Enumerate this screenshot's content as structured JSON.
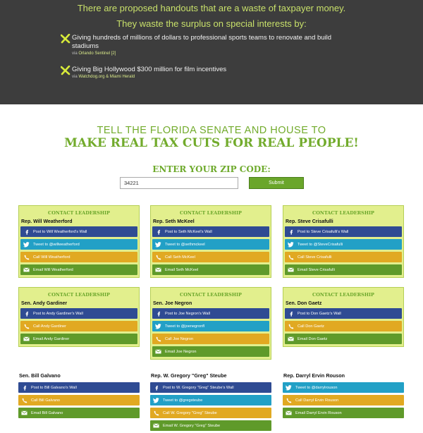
{
  "top": {
    "intro": "There are proposed handouts that are a waste of taxpayer money.",
    "waste_heading": "They waste the surplus on special interests by:",
    "items": [
      {
        "text": "Giving hundreds of millions of dollars to professional sports teams to renovate and build stadiums",
        "via_prefix": "via",
        "via_links": "Orlando Sentinel [2]"
      },
      {
        "text": "Giving Big Hollywood $300 million for film incentives",
        "via_prefix": "via",
        "via_links": "Watchdog.org & Miami Herald"
      }
    ]
  },
  "headline": {
    "line1": "TELL THE FLORIDA SENATE AND HOUSE TO",
    "line2": "MAKE REAL TAX CUTS FOR REAL PEOPLE!"
  },
  "zip": {
    "label": "ENTER YOUR ZIP CODE:",
    "value": "34221",
    "submit": "Submit"
  },
  "contact_title": "CONTACT LEADERSHIP",
  "cards": [
    {
      "name": "Rep. Will Weatherford",
      "fb": "Post to Will Weatherford's Wall",
      "tw": "Tweet to @willweatherford",
      "call": "Call Will Weatherford",
      "email": "Email Will Weatherford"
    },
    {
      "name": "Rep. Seth McKeel",
      "fb": "Post to Seth McKeel's Wall",
      "tw": "Tweet to @sethmckeel",
      "call": "Call Seth McKeel",
      "email": "Email Seth McKeel"
    },
    {
      "name": "Rep. Steve Crisafulli",
      "fb": "Post to Steve Crisafulli's Wall",
      "tw": "Tweet to @SteveCrisafulli",
      "call": "Call Steve Crisafulli",
      "email": "Email Steve Crisafulli"
    },
    {
      "name": "Sen. Andy Gardiner",
      "fb": "Post to Andy Gardiner's Wall",
      "call": "Call Andy Gardiner",
      "email": "Email Andy Gardiner"
    },
    {
      "name": "Sen. Joe Negron",
      "fb": "Post to Joe Negron's Wall",
      "tw": "Tweet to @joenegronfl",
      "call": "Call Joe Negron",
      "email": "Email Joe Negron"
    },
    {
      "name": "Sen. Don Gaetz",
      "fb": "Post to Don Gaetz's Wall",
      "call": "Call Don Gaetz",
      "email": "Email Don Gaetz"
    },
    {
      "name": "Sen. Bill Galvano",
      "fb": "Post to Bill Galvano's Wall",
      "call": "Call Bill Galvano",
      "email": "Email Bill Galvano"
    },
    {
      "name": "Rep. W. Gregory \"Greg\" Steube",
      "fb": "Post to W. Gregory \"Greg\" Steube's Wall",
      "tw": "Tweet to @gregsteube",
      "call": "Call W. Gregory \"Greg\" Steube",
      "email": "Email W. Gregory \"Greg\" Steube"
    },
    {
      "name": "Rep. Darryl Ervin Rouson",
      "tw": "Tweet to @darrylrouson",
      "call": "Call Darryl Ervin Rouson",
      "email": "Email Darryl Ervin Rouson"
    }
  ],
  "colors": {
    "facebook": "#2f4b93",
    "twitter": "#22a0c6",
    "call": "#e1a922",
    "email": "#5f9a2a",
    "accent_green": "#72ab2c",
    "card_bg": "#e2ef8d"
  },
  "icons": {
    "facebook": "facebook-icon",
    "twitter": "twitter-icon",
    "call": "phone-icon",
    "email": "envelope-icon",
    "bullet": "x-mark-icon"
  }
}
